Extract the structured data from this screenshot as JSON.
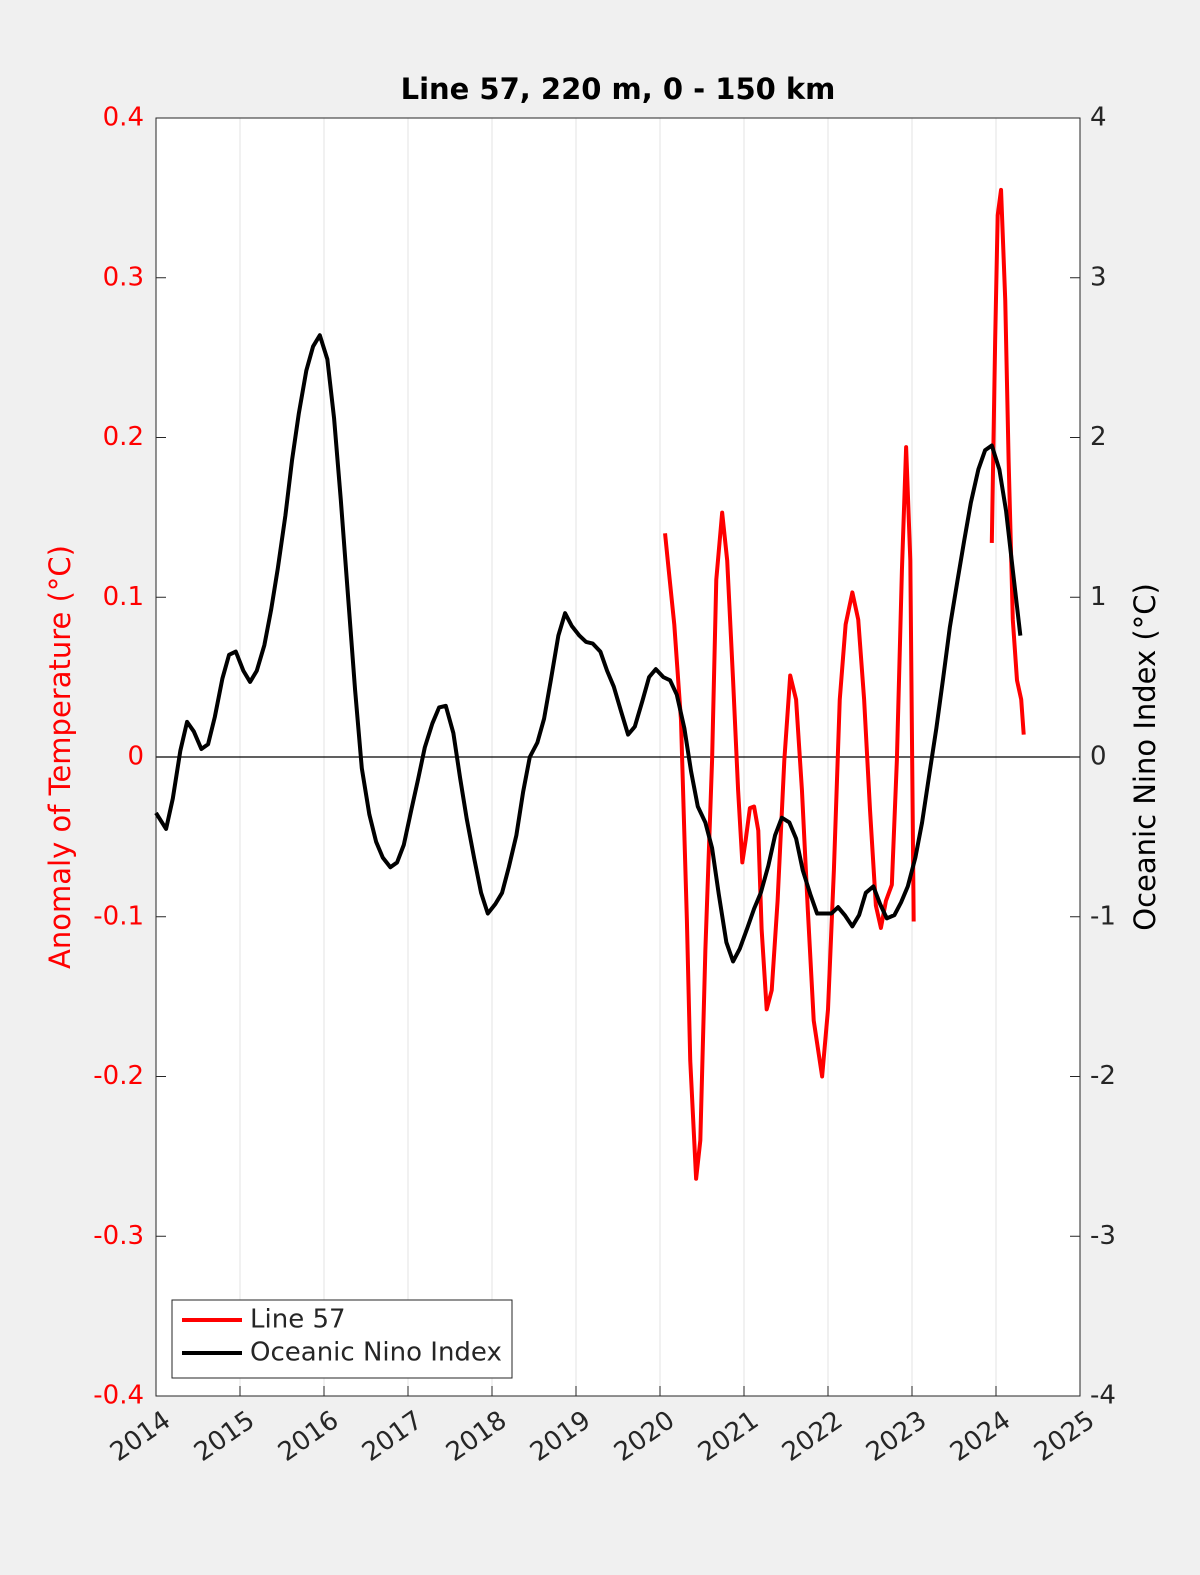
{
  "chart_data": {
    "type": "line",
    "title": "Line 57, 220 m, 0 - 150 km",
    "ylabel": "Anomaly of Temperature (°C)",
    "y2label": "Oceanic Nino Index (°C)",
    "xlim": [
      2014,
      2025
    ],
    "xticks": [
      2014,
      2015,
      2016,
      2017,
      2018,
      2019,
      2020,
      2021,
      2022,
      2023,
      2024,
      2025
    ],
    "ylim": [
      -0.4,
      0.4
    ],
    "yticks": [
      -0.4,
      -0.3,
      -0.2,
      -0.1,
      0,
      0.1,
      0.2,
      0.3,
      0.4
    ],
    "y2lim": [
      -4,
      4
    ],
    "y2ticks": [
      -4,
      -3,
      -2,
      -1,
      0,
      1,
      2,
      3,
      4
    ],
    "grid": true,
    "legend": "lower left",
    "series": [
      {
        "name": "Line 57",
        "color": "#ff0000",
        "x": [
          2020.06,
          2020.1,
          2020.17,
          2020.25,
          2020.32,
          2020.36,
          2020.43,
          2020.48,
          2020.54,
          2020.62,
          2020.67,
          2020.74,
          2020.8,
          2020.87,
          2020.93,
          2020.98,
          2021.02,
          2021.07,
          2021.12,
          2021.17,
          2021.21,
          2021.27,
          2021.33,
          2021.4,
          2021.48,
          2021.55,
          2021.62,
          2021.69,
          2021.76,
          2021.83,
          2021.93,
          2022.0,
          2022.07,
          2022.14,
          2022.21,
          2022.29,
          2022.36,
          2022.43,
          2022.5,
          2022.57,
          2022.63,
          2022.69,
          2022.76,
          2022.82,
          2022.88,
          2022.93,
          2022.98,
          2023.02,
          2023.5,
          2023.95,
          2023.99,
          2024.02,
          2024.06,
          2024.11,
          2024.15,
          2024.2,
          2024.25,
          2024.3,
          2024.33
        ],
        "values": [
          0.14,
          0.119,
          0.083,
          0.023,
          -0.102,
          -0.19,
          -0.264,
          -0.24,
          -0.121,
          -0.002,
          0.111,
          0.153,
          0.123,
          0.048,
          -0.021,
          -0.066,
          -0.052,
          -0.032,
          -0.031,
          -0.046,
          -0.108,
          -0.158,
          -0.146,
          -0.09,
          -0.002,
          0.051,
          0.036,
          -0.021,
          -0.096,
          -0.165,
          -0.2,
          -0.158,
          -0.071,
          0.036,
          0.083,
          0.103,
          0.086,
          0.036,
          -0.033,
          -0.093,
          -0.107,
          -0.09,
          -0.08,
          -0.002,
          0.117,
          0.194,
          0.123,
          -0.103,
          null,
          0.134,
          0.261,
          0.339,
          0.355,
          0.286,
          0.186,
          0.086,
          0.048,
          0.036,
          0.014
        ]
      },
      {
        "name": "Oceanic Nino Index",
        "color": "#000000",
        "axis": "y2",
        "x": [
          2014.0,
          2014.12,
          2014.2,
          2014.29,
          2014.37,
          2014.45,
          2014.54,
          2014.62,
          2014.7,
          2014.79,
          2014.87,
          2014.95,
          2015.04,
          2015.12,
          2015.2,
          2015.29,
          2015.37,
          2015.45,
          2015.54,
          2015.62,
          2015.7,
          2015.79,
          2015.87,
          2015.95,
          2016.04,
          2016.12,
          2016.2,
          2016.29,
          2016.37,
          2016.45,
          2016.54,
          2016.62,
          2016.7,
          2016.79,
          2016.87,
          2016.95,
          2017.04,
          2017.12,
          2017.2,
          2017.29,
          2017.37,
          2017.45,
          2017.54,
          2017.62,
          2017.7,
          2017.79,
          2017.87,
          2017.95,
          2018.04,
          2018.12,
          2018.2,
          2018.29,
          2018.37,
          2018.45,
          2018.54,
          2018.62,
          2018.7,
          2018.79,
          2018.87,
          2018.95,
          2019.04,
          2019.12,
          2019.2,
          2019.29,
          2019.37,
          2019.45,
          2019.54,
          2019.62,
          2019.7,
          2019.79,
          2019.87,
          2019.95,
          2020.04,
          2020.12,
          2020.2,
          2020.29,
          2020.37,
          2020.45,
          2020.54,
          2020.62,
          2020.7,
          2020.79,
          2020.87,
          2020.95,
          2021.04,
          2021.12,
          2021.2,
          2021.29,
          2021.37,
          2021.45,
          2021.54,
          2021.62,
          2021.7,
          2021.79,
          2021.87,
          2021.95,
          2022.04,
          2022.12,
          2022.2,
          2022.29,
          2022.37,
          2022.45,
          2022.54,
          2022.62,
          2022.7,
          2022.79,
          2022.87,
          2022.95,
          2023.04,
          2023.12,
          2023.2,
          2023.29,
          2023.37,
          2023.45,
          2023.54,
          2023.62,
          2023.7,
          2023.79,
          2023.87,
          2023.95,
          2024.04,
          2024.12,
          2024.2,
          2024.29
        ],
        "values": [
          -0.35,
          -0.45,
          -0.26,
          0.04,
          0.22,
          0.16,
          0.05,
          0.08,
          0.25,
          0.49,
          0.64,
          0.66,
          0.54,
          0.47,
          0.54,
          0.7,
          0.92,
          1.18,
          1.51,
          1.86,
          2.15,
          2.42,
          2.57,
          2.64,
          2.49,
          2.12,
          1.61,
          0.98,
          0.42,
          -0.07,
          -0.36,
          -0.53,
          -0.63,
          -0.69,
          -0.66,
          -0.55,
          -0.33,
          -0.14,
          0.06,
          0.21,
          0.31,
          0.32,
          0.15,
          -0.13,
          -0.39,
          -0.64,
          -0.85,
          -0.98,
          -0.92,
          -0.85,
          -0.69,
          -0.49,
          -0.22,
          0.0,
          0.09,
          0.24,
          0.48,
          0.76,
          0.9,
          0.82,
          0.76,
          0.72,
          0.71,
          0.66,
          0.54,
          0.44,
          0.28,
          0.14,
          0.19,
          0.35,
          0.5,
          0.55,
          0.5,
          0.48,
          0.39,
          0.18,
          -0.09,
          -0.31,
          -0.41,
          -0.57,
          -0.86,
          -1.16,
          -1.28,
          -1.2,
          -1.07,
          -0.95,
          -0.85,
          -0.68,
          -0.49,
          -0.38,
          -0.41,
          -0.51,
          -0.71,
          -0.86,
          -0.98,
          -0.98,
          -0.98,
          -0.94,
          -0.99,
          -1.06,
          -0.99,
          -0.85,
          -0.81,
          -0.92,
          -1.01,
          -0.99,
          -0.91,
          -0.81,
          -0.63,
          -0.41,
          -0.13,
          0.18,
          0.49,
          0.81,
          1.1,
          1.35,
          1.59,
          1.8,
          1.92,
          1.95,
          1.8,
          1.54,
          1.17,
          0.76
        ]
      }
    ]
  }
}
